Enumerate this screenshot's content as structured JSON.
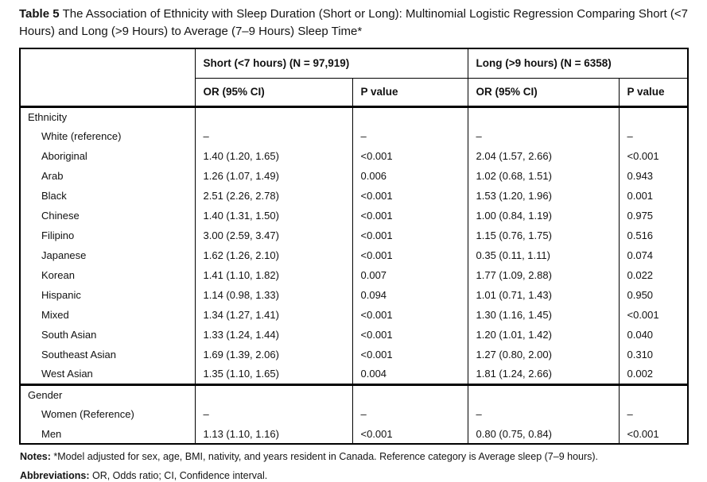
{
  "title": {
    "label": "Table 5",
    "text": "The Association of Ethnicity with Sleep Duration (Short or Long): Multinomial Logistic Regression Comparing Short (<7 Hours) and Long (>9 Hours) to Average (7–9 Hours) Sleep Time*"
  },
  "table": {
    "col_groups": [
      {
        "label": "Short (<7 hours) (N = 97,919)"
      },
      {
        "label": "Long (>9 hours) (N = 6358)"
      }
    ],
    "sub_headers": [
      "OR (95% CI)",
      "P value",
      "OR (95% CI)",
      "P value"
    ],
    "sections": [
      {
        "header": "Ethnicity",
        "rows": [
          {
            "label": "White (reference)",
            "cells": [
              "–",
              "–",
              "–",
              "–"
            ]
          },
          {
            "label": "Aboriginal",
            "cells": [
              "1.40 (1.20, 1.65)",
              "<0.001",
              "2.04 (1.57, 2.66)",
              "<0.001"
            ]
          },
          {
            "label": "Arab",
            "cells": [
              "1.26 (1.07, 1.49)",
              "0.006",
              "1.02 (0.68, 1.51)",
              "0.943"
            ]
          },
          {
            "label": "Black",
            "cells": [
              "2.51 (2.26, 2.78)",
              "<0.001",
              "1.53 (1.20, 1.96)",
              "0.001"
            ]
          },
          {
            "label": "Chinese",
            "cells": [
              "1.40 (1.31, 1.50)",
              "<0.001",
              "1.00 (0.84, 1.19)",
              "0.975"
            ]
          },
          {
            "label": "Filipino",
            "cells": [
              "3.00 (2.59, 3.47)",
              "<0.001",
              "1.15 (0.76, 1.75)",
              "0.516"
            ]
          },
          {
            "label": "Japanese",
            "cells": [
              "1.62 (1.26, 2.10)",
              "<0.001",
              "0.35 (0.11, 1.11)",
              "0.074"
            ]
          },
          {
            "label": "Korean",
            "cells": [
              "1.41 (1.10, 1.82)",
              "0.007",
              "1.77 (1.09, 2.88)",
              "0.022"
            ]
          },
          {
            "label": "Hispanic",
            "cells": [
              "1.14 (0.98, 1.33)",
              "0.094",
              "1.01 (0.71, 1.43)",
              "0.950"
            ]
          },
          {
            "label": "Mixed",
            "cells": [
              "1.34 (1.27, 1.41)",
              "<0.001",
              "1.30 (1.16, 1.45)",
              "<0.001"
            ]
          },
          {
            "label": "South Asian",
            "cells": [
              "1.33 (1.24, 1.44)",
              "<0.001",
              "1.20 (1.01, 1.42)",
              "0.040"
            ]
          },
          {
            "label": "Southeast Asian",
            "cells": [
              "1.69 (1.39, 2.06)",
              "<0.001",
              "1.27 (0.80, 2.00)",
              "0.310"
            ]
          },
          {
            "label": "West Asian",
            "cells": [
              "1.35 (1.10, 1.65)",
              "0.004",
              "1.81 (1.24, 2.66)",
              "0.002"
            ]
          }
        ]
      },
      {
        "header": "Gender",
        "rows": [
          {
            "label": "Women (Reference)",
            "cells": [
              "–",
              "–",
              "–",
              "–"
            ]
          },
          {
            "label": "Men",
            "cells": [
              "1.13 (1.10, 1.16)",
              "<0.001",
              "0.80 (0.75, 0.84)",
              "<0.001"
            ]
          }
        ]
      }
    ]
  },
  "notes": {
    "label": "Notes:",
    "text": " *Model adjusted for sex, age, BMI, nativity, and years resident in Canada. Reference category is Average sleep (7–9 hours)."
  },
  "abbreviations": {
    "label": "Abbreviations:",
    "text": " OR, Odds ratio; CI, Confidence interval."
  }
}
